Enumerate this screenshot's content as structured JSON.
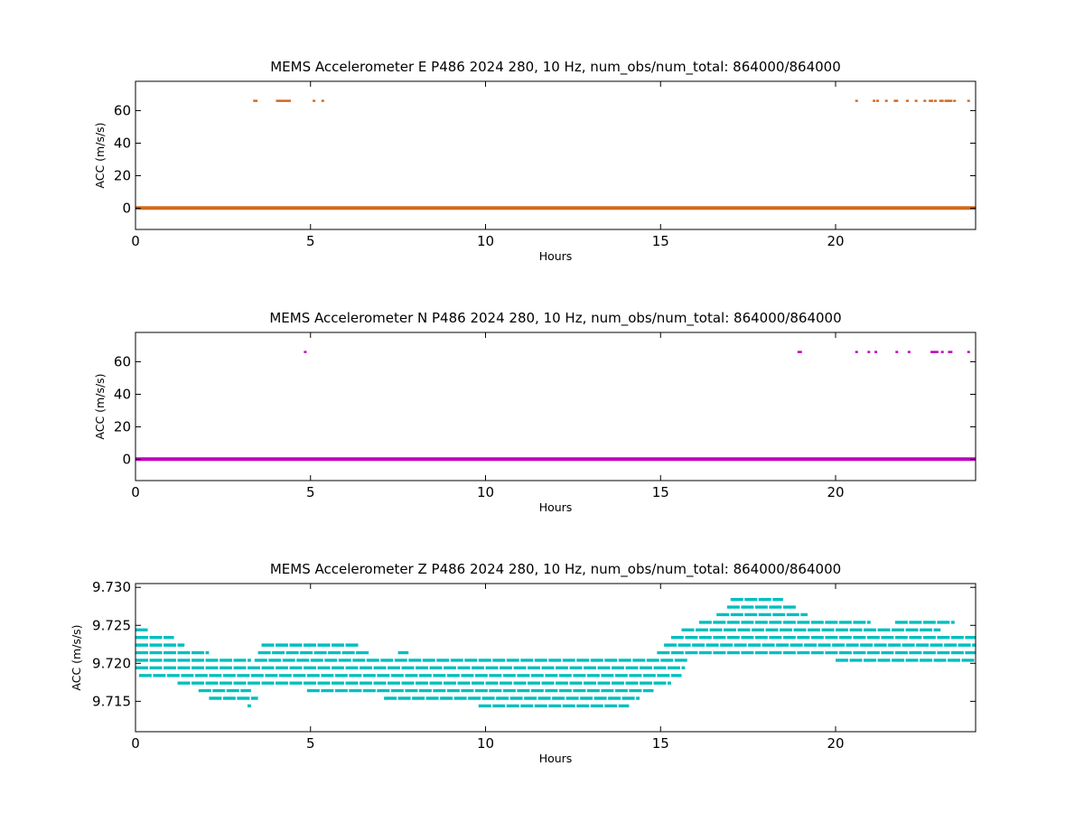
{
  "figure": {
    "background": "#ffffff"
  },
  "chart_data": [
    {
      "type": "scatter",
      "title": "MEMS Accelerometer E P486 2024 280, 10 Hz, num_obs/num_total: 864000/864000",
      "xlabel": "Hours",
      "ylabel": "ACC (m/s/s)",
      "xlim": [
        0,
        24
      ],
      "ylim": [
        -13,
        78
      ],
      "xticks": [
        0,
        5,
        10,
        15,
        20
      ],
      "yticks": [
        0,
        20,
        40,
        60
      ],
      "tick_labels_x": [
        "0",
        "5",
        "10",
        "15",
        "20"
      ],
      "tick_labels_y": [
        "0",
        "20",
        "40",
        "60"
      ],
      "color": "#d2691e",
      "baseline": {
        "y": 0.2,
        "x_start": 0,
        "x_end": 24
      },
      "outliers": {
        "y": 66,
        "x": [
          3.4,
          3.45,
          4.05,
          4.1,
          4.15,
          4.2,
          4.25,
          4.3,
          4.35,
          4.4,
          5.1,
          5.35,
          20.6,
          21.1,
          21.2,
          21.45,
          21.7,
          21.75,
          22.05,
          22.3,
          22.55,
          22.7,
          22.75,
          22.85,
          23.0,
          23.05,
          23.15,
          23.2,
          23.25,
          23.3,
          23.4,
          23.8
        ]
      }
    },
    {
      "type": "scatter",
      "title": "MEMS Accelerometer N P486 2024 280, 10 Hz, num_obs/num_total: 864000/864000",
      "xlabel": "Hours",
      "ylabel": "ACC (m/s/s)",
      "xlim": [
        0,
        24
      ],
      "ylim": [
        -13,
        78
      ],
      "xticks": [
        0,
        5,
        10,
        15,
        20
      ],
      "yticks": [
        0,
        20,
        40,
        60
      ],
      "tick_labels_x": [
        "0",
        "5",
        "10",
        "15",
        "20"
      ],
      "tick_labels_y": [
        "0",
        "20",
        "40",
        "60"
      ],
      "color": "#bf00bf",
      "baseline": {
        "y": 0.2,
        "x_start": 0,
        "x_end": 24
      },
      "outliers": {
        "y": 66,
        "x": [
          4.85,
          18.95,
          19.0,
          20.6,
          20.95,
          21.15,
          21.75,
          22.1,
          22.75,
          22.8,
          22.85,
          22.9,
          23.05,
          23.25,
          23.3,
          23.8
        ]
      }
    },
    {
      "type": "scatter",
      "title": "MEMS Accelerometer Z P486 2024 280, 10 Hz, num_obs/num_total: 864000/864000",
      "xlabel": "Hours",
      "ylabel": "ACC (m/s/s)",
      "xlim": [
        0,
        24
      ],
      "ylim": [
        9.711,
        9.7305
      ],
      "xticks": [
        0,
        5,
        10,
        15,
        20
      ],
      "yticks": [
        9.715,
        9.72,
        9.725,
        9.73
      ],
      "tick_labels_x": [
        "0",
        "5",
        "10",
        "15",
        "20"
      ],
      "tick_labels_y": [
        "9.715",
        "9.720",
        "9.725",
        "9.730"
      ],
      "color": "#00bfbf",
      "levels": [
        {
          "y": 9.7284,
          "segments": [
            [
              17.0,
              18.5
            ]
          ]
        },
        {
          "y": 9.7274,
          "segments": [
            [
              16.9,
              18.9
            ]
          ]
        },
        {
          "y": 9.7264,
          "segments": [
            [
              16.6,
              19.2
            ]
          ]
        },
        {
          "y": 9.7254,
          "segments": [
            [
              16.1,
              21.0
            ],
            [
              21.7,
              23.4
            ]
          ]
        },
        {
          "y": 9.7244,
          "segments": [
            [
              0.0,
              0.35
            ],
            [
              15.6,
              23.0
            ]
          ]
        },
        {
          "y": 9.7234,
          "segments": [
            [
              0.0,
              1.1
            ],
            [
              15.3,
              24.0
            ]
          ]
        },
        {
          "y": 9.7224,
          "segments": [
            [
              0.0,
              1.4
            ],
            [
              3.6,
              6.4
            ],
            [
              15.1,
              24.0
            ]
          ]
        },
        {
          "y": 9.7214,
          "segments": [
            [
              0.0,
              2.1
            ],
            [
              3.5,
              6.7
            ],
            [
              7.5,
              7.8
            ],
            [
              14.9,
              24.0
            ]
          ]
        },
        {
          "y": 9.7204,
          "segments": [
            [
              0.0,
              3.3
            ],
            [
              3.4,
              15.8
            ],
            [
              20.0,
              24.0
            ]
          ]
        },
        {
          "y": 9.7194,
          "segments": [
            [
              0.0,
              15.7
            ]
          ]
        },
        {
          "y": 9.7184,
          "segments": [
            [
              0.1,
              15.6
            ]
          ]
        },
        {
          "y": 9.7174,
          "segments": [
            [
              1.2,
              15.3
            ]
          ]
        },
        {
          "y": 9.7164,
          "segments": [
            [
              1.8,
              3.3
            ],
            [
              4.9,
              14.8
            ]
          ]
        },
        {
          "y": 9.7154,
          "segments": [
            [
              2.1,
              3.5
            ],
            [
              7.1,
              14.4
            ]
          ]
        },
        {
          "y": 9.7144,
          "segments": [
            [
              3.2,
              3.3
            ],
            [
              9.8,
              14.1
            ]
          ]
        }
      ]
    }
  ]
}
